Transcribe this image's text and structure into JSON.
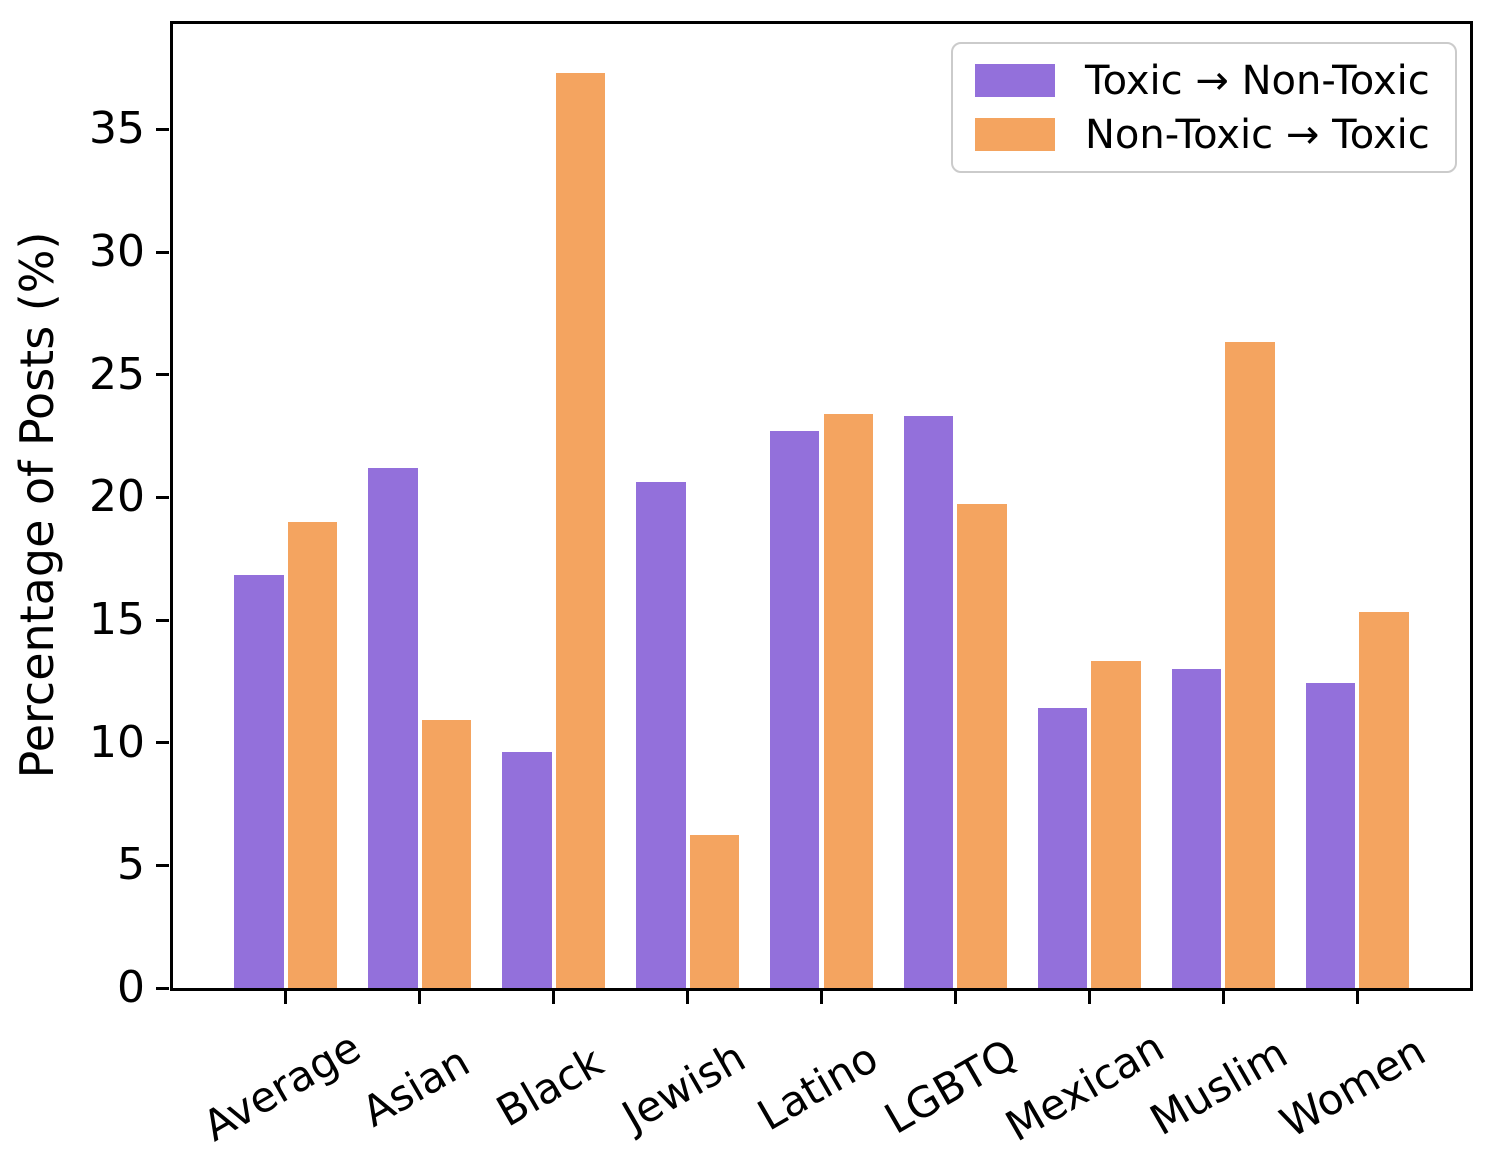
{
  "figure": {
    "ylabel": "Percentage of Posts (%)",
    "background": "#ffffff",
    "spine_color": "#000000",
    "tick_color": "#000000"
  },
  "legend": {
    "position": "upper right",
    "items": [
      {
        "label": "Toxic → Non-Toxic",
        "color": "#9370DB",
        "swatch": "purple-swatch"
      },
      {
        "label": "Non-Toxic → Toxic",
        "color": "#F4A460",
        "swatch": "orange-swatch"
      }
    ]
  },
  "chart_data": {
    "type": "bar",
    "title": "",
    "xlabel": "",
    "ylabel": "Percentage of Posts (%)",
    "categories": [
      "Average",
      "Asian",
      "Black",
      "Jewish",
      "Latino",
      "LGBTQ",
      "Mexican",
      "Muslim",
      "Women"
    ],
    "series": [
      {
        "name": "Toxic → Non-Toxic",
        "color": "#9370DB",
        "values": [
          16.9,
          21.3,
          9.7,
          20.7,
          22.8,
          23.4,
          11.5,
          13.1,
          12.5
        ]
      },
      {
        "name": "Non-Toxic → Toxic",
        "color": "#F4A460",
        "values": [
          19.1,
          11.0,
          37.4,
          6.3,
          23.5,
          19.8,
          13.4,
          26.4,
          15.4
        ]
      }
    ],
    "yticks": [
      0,
      5,
      10,
      15,
      20,
      25,
      30,
      35
    ],
    "ylim": [
      0,
      39.3
    ],
    "grid": false,
    "bar_width": 0.4,
    "group_gap": 0.2,
    "tick_label_rotation": 30,
    "legend_position": "upper right"
  }
}
